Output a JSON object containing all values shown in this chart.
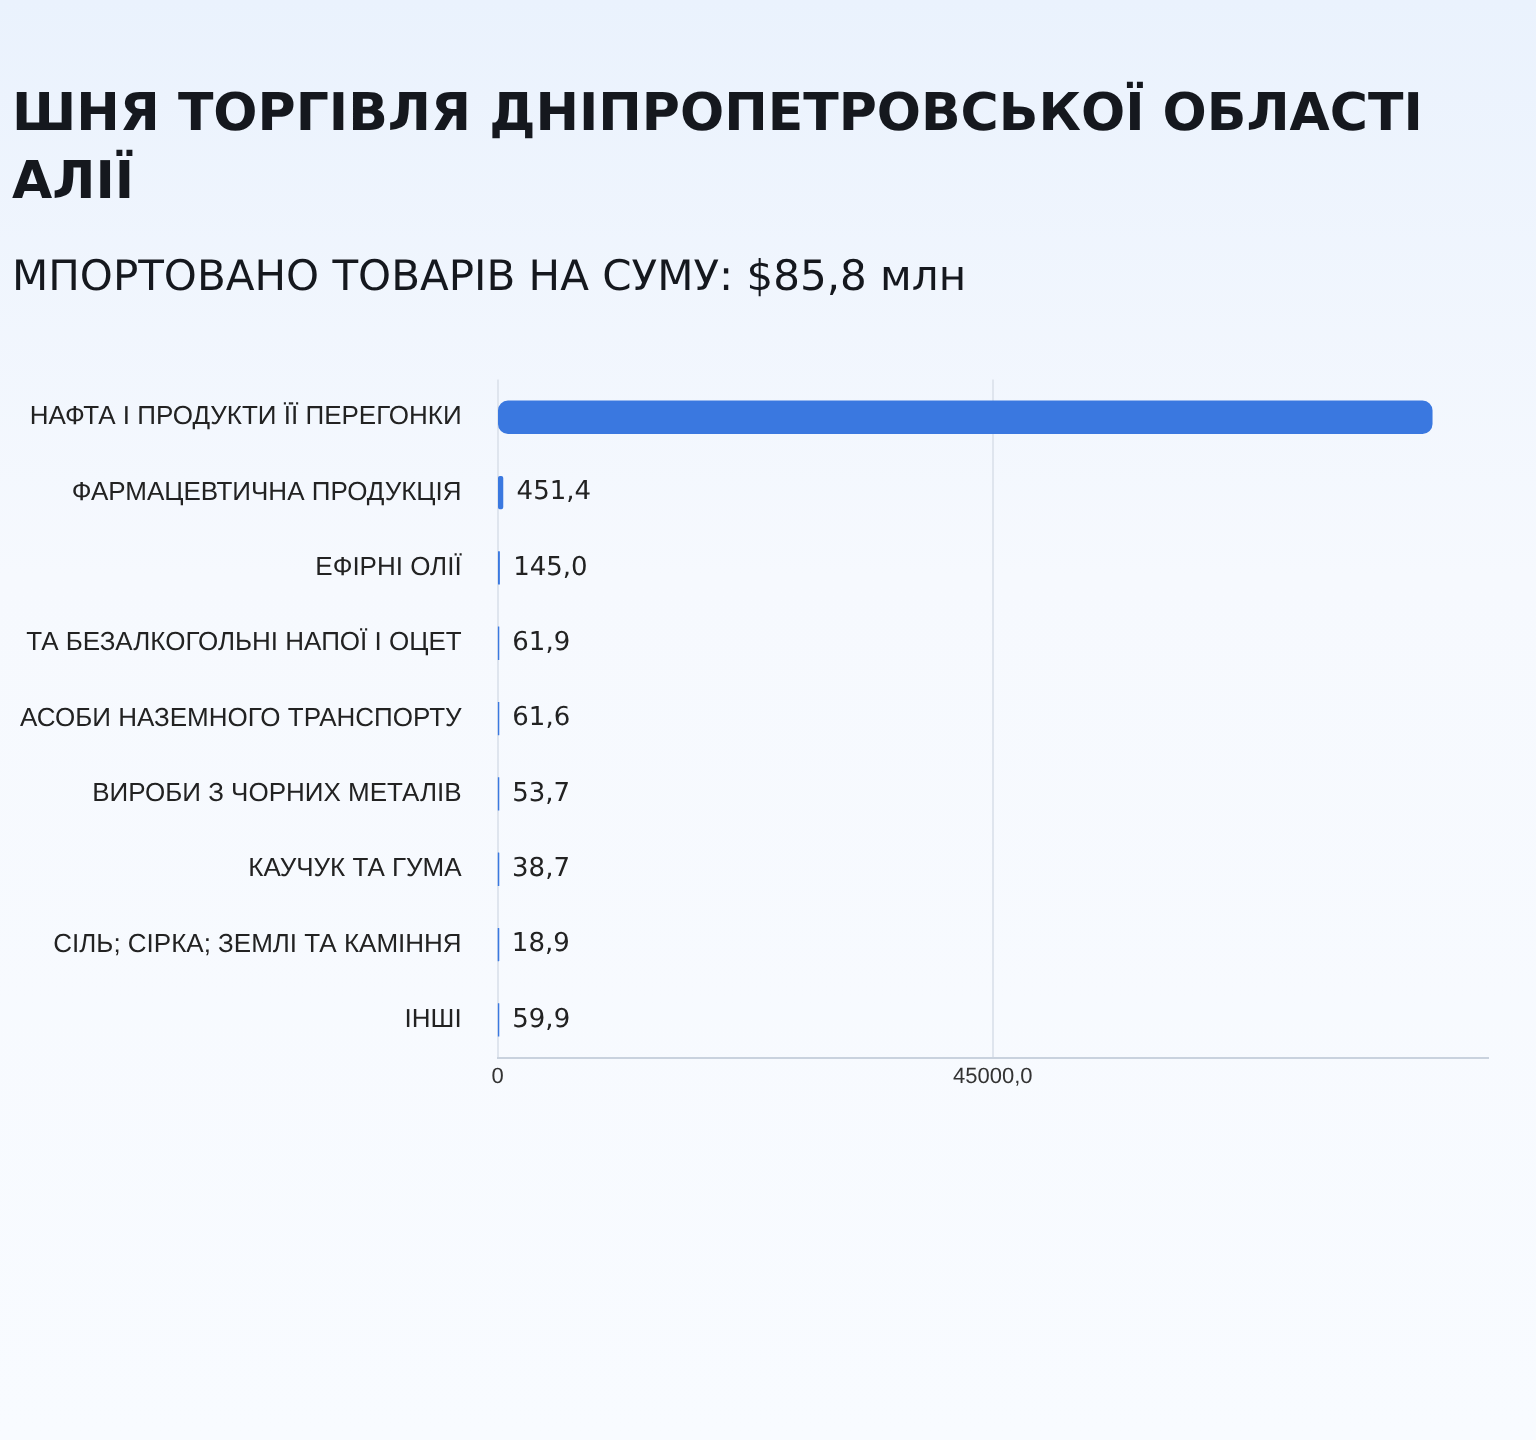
{
  "chart_data": {
    "type": "bar",
    "orientation": "horizontal",
    "title": "ШНЯ ТОРГІВЛЯ ДНІПРОПЕТРОВСЬКОЇ ОБЛАСТІ\nАЛІЇ",
    "subtitle": "МПОРТОВАНО ТОВАРІВ НА СУМУ: $85,8 млн",
    "categories": [
      "НАФТА І ПРОДУКТИ ЇЇ ПЕРЕГОНКИ",
      "ФАРМАЦЕВТИЧНА ПРОДУКЦІЯ",
      "ЕФІРНІ ОЛІЇ",
      "ТА БЕЗАЛКОГОЛЬНІ НАПОЇ І ОЦЕТ",
      "АСОБИ НАЗЕМНОГО ТРАНСПОРТУ",
      "ВИРОБИ З ЧОРНИХ МЕТАЛІВ",
      "КАУЧУК ТА ГУМА",
      "СІЛЬ; СІРКА; ЗЕМЛІ ТА КАМІННЯ",
      "ІНШІ"
    ],
    "values": [
      84900,
      451.4,
      145.0,
      61.9,
      61.6,
      53.7,
      38.7,
      18.9,
      59.9
    ],
    "value_labels": [
      null,
      "451,4",
      "145,0",
      "61,9",
      "61,6",
      "53,7",
      "38,7",
      "18,9",
      "59,9"
    ],
    "color": "#3a78e0",
    "xlim": [
      0,
      90000
    ],
    "xticks": [
      0,
      {
        "value": 45000,
        "label": "45000,0"
      }
    ],
    "grid": "x"
  }
}
